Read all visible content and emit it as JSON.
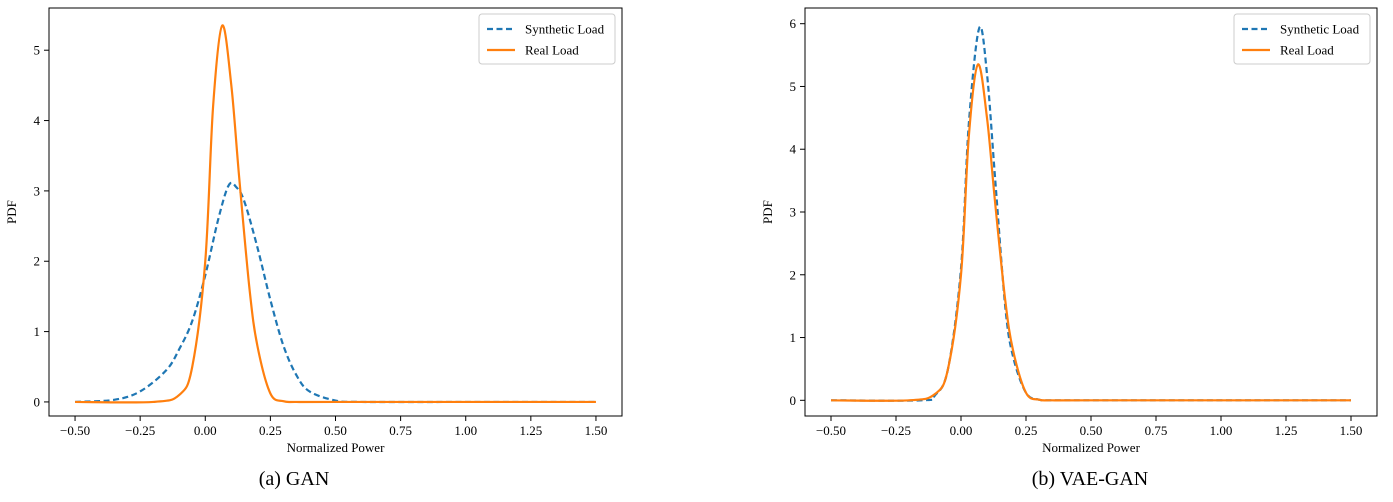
{
  "figure": {
    "captions": [
      "(a) GAN",
      "(b) VAE-GAN"
    ]
  },
  "chart_data": [
    {
      "type": "line",
      "title": "",
      "xlabel": "Normalized Power",
      "ylabel": "PDF",
      "xlim": [
        -0.6,
        1.6
      ],
      "ylim": [
        -0.2,
        5.6
      ],
      "xticks": [
        "−0.50",
        "−0.25",
        "0.00",
        "0.25",
        "0.50",
        "0.75",
        "1.00",
        "1.25",
        "1.50"
      ],
      "xtick_values": [
        -0.5,
        -0.25,
        0.0,
        0.25,
        0.5,
        0.75,
        1.0,
        1.25,
        1.5
      ],
      "yticks": [
        "0",
        "1",
        "2",
        "3",
        "4",
        "5"
      ],
      "ytick_values": [
        0,
        1,
        2,
        3,
        4,
        5
      ],
      "grid": false,
      "legend_position": "top-right",
      "series": [
        {
          "name": "Synthetic Load",
          "color": "#1f77b4",
          "style": "dashed",
          "x": [
            -0.5,
            -0.35,
            -0.25,
            -0.15,
            -0.1,
            -0.05,
            0.0,
            0.05,
            0.09,
            0.12,
            0.15,
            0.2,
            0.25,
            0.3,
            0.35,
            0.4,
            0.5,
            0.6,
            1.0,
            1.5
          ],
          "y": [
            0.0,
            0.03,
            0.15,
            0.45,
            0.75,
            1.15,
            1.8,
            2.6,
            3.08,
            3.05,
            2.85,
            2.2,
            1.45,
            0.8,
            0.38,
            0.15,
            0.02,
            0.0,
            0.0,
            0.0
          ]
        },
        {
          "name": "Real Load",
          "color": "#ff7f0e",
          "style": "solid",
          "x": [
            -0.5,
            -0.2,
            -0.1,
            -0.05,
            0.0,
            0.03,
            0.065,
            0.1,
            0.13,
            0.17,
            0.2,
            0.25,
            0.3,
            0.35,
            0.5,
            1.5
          ],
          "y": [
            0.0,
            0.0,
            0.1,
            0.5,
            2.0,
            4.2,
            5.35,
            4.5,
            3.2,
            1.6,
            0.8,
            0.12,
            0.01,
            0.0,
            0.0,
            0.0
          ]
        }
      ]
    },
    {
      "type": "line",
      "title": "",
      "xlabel": "Normalized Power",
      "ylabel": "PDF",
      "xlim": [
        -0.6,
        1.6
      ],
      "ylim": [
        -0.25,
        6.25
      ],
      "xticks": [
        "−0.50",
        "−0.25",
        "0.00",
        "0.25",
        "0.50",
        "0.75",
        "1.00",
        "1.25",
        "1.50"
      ],
      "xtick_values": [
        -0.5,
        -0.25,
        0.0,
        0.25,
        0.5,
        0.75,
        1.0,
        1.25,
        1.5
      ],
      "yticks": [
        "0",
        "1",
        "2",
        "3",
        "4",
        "5",
        "6"
      ],
      "ytick_values": [
        0,
        1,
        2,
        3,
        4,
        5,
        6
      ],
      "grid": false,
      "legend_position": "top-right",
      "series": [
        {
          "name": "Synthetic Load",
          "color": "#1f77b4",
          "style": "dashed",
          "x": [
            -0.5,
            -0.15,
            -0.1,
            -0.05,
            0.0,
            0.03,
            0.07,
            0.1,
            0.13,
            0.17,
            0.2,
            0.25,
            0.3,
            0.35,
            0.5,
            1.5
          ],
          "y": [
            0.0,
            0.0,
            0.08,
            0.5,
            2.1,
            4.4,
            5.93,
            5.2,
            3.6,
            1.5,
            0.7,
            0.12,
            0.01,
            0.0,
            0.0,
            0.0
          ]
        },
        {
          "name": "Real Load",
          "color": "#ff7f0e",
          "style": "solid",
          "x": [
            -0.5,
            -0.2,
            -0.1,
            -0.05,
            0.0,
            0.03,
            0.065,
            0.1,
            0.13,
            0.17,
            0.2,
            0.25,
            0.3,
            0.35,
            0.5,
            1.5
          ],
          "y": [
            0.0,
            0.0,
            0.1,
            0.5,
            2.0,
            4.2,
            5.35,
            4.5,
            3.2,
            1.6,
            0.8,
            0.12,
            0.01,
            0.0,
            0.0,
            0.0
          ]
        }
      ]
    }
  ]
}
